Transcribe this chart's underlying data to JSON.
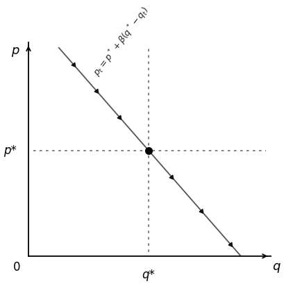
{
  "title": "",
  "xlabel": "q",
  "ylabel": "p",
  "origin_label": "0",
  "q_star_label": "q*",
  "p_star_label": "p*",
  "line_equation_label": "$p_t = p^*$\n$+ \\beta(q^*$\n$- q_t)$",
  "q_star": 0.52,
  "p_star": 0.52,
  "slope": -1.3,
  "line_color": "#555555",
  "dot_color": "#111111",
  "equilibrium_color": "#111111",
  "xlim": [
    0,
    1.05
  ],
  "ylim": [
    0,
    1.05
  ],
  "axis_color": "#000000",
  "dotted_color": "#777777",
  "line_width": 1.3,
  "q_min_line": 0.13,
  "q_max_line": 0.94
}
